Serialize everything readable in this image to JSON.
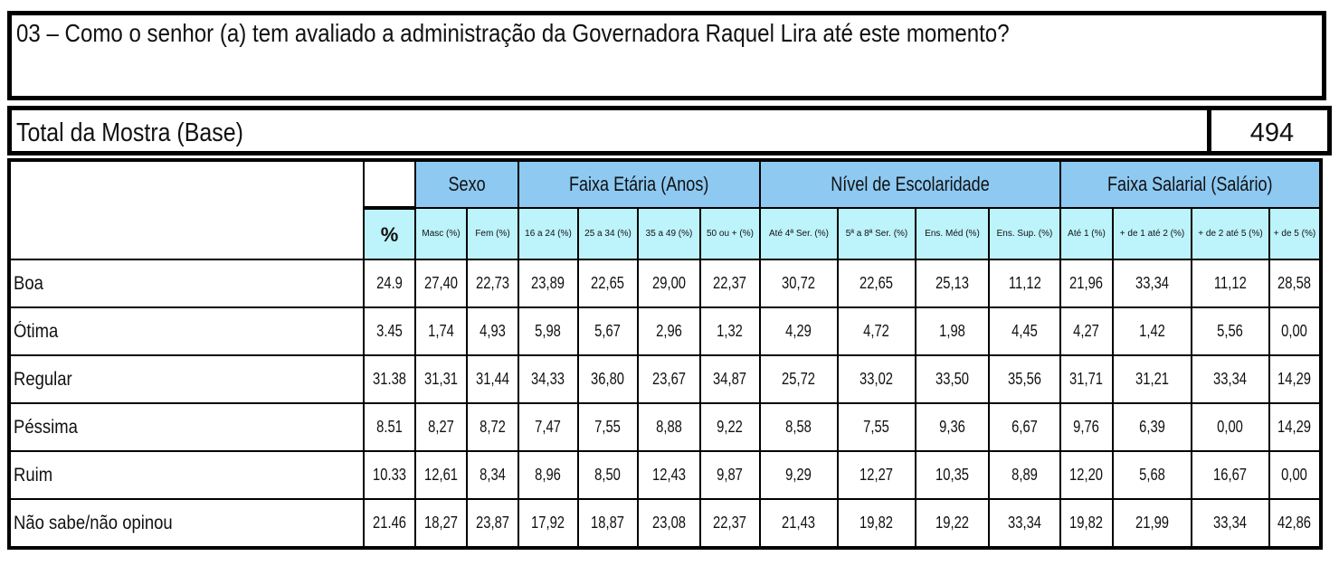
{
  "question": "03 – Como o senhor (a) tem avaliado a administração da Governadora Raquel Lira até este momento?",
  "base": {
    "label": "Total da Mostra (Base)",
    "value": "494"
  },
  "groups": [
    "Sexo",
    "Faixa Etária (Anos)",
    "Nível de Escolaridade",
    "Faixa Salarial (Salário)"
  ],
  "pct_header": "%",
  "columns": [
    "Masc (%)",
    "Fem (%)",
    "16 a 24 (%)",
    "25 a 34 (%)",
    "35 a 49 (%)",
    "50 ou + (%)",
    "Até 4ª Ser. (%)",
    "5ª a 8ª Ser. (%)",
    "Ens. Méd (%)",
    "Ens. Sup. (%)",
    "Até 1 (%)",
    "+ de 1 até 2 (%)",
    "+ de 2 até 5 (%)",
    "+ de 5 (%)"
  ],
  "rows": [
    {
      "label": "Boa",
      "pct": "24.9",
      "values": [
        "27,40",
        "22,73",
        "23,89",
        "22,65",
        "29,00",
        "22,37",
        "30,72",
        "22,65",
        "25,13",
        "11,12",
        "21,96",
        "33,34",
        "11,12",
        "28,58"
      ]
    },
    {
      "label": "Ótima",
      "pct": "3.45",
      "values": [
        "1,74",
        "4,93",
        "5,98",
        "5,67",
        "2,96",
        "1,32",
        "4,29",
        "4,72",
        "1,98",
        "4,45",
        "4,27",
        "1,42",
        "5,56",
        "0,00"
      ]
    },
    {
      "label": "Regular",
      "pct": "31.38",
      "values": [
        "31,31",
        "31,44",
        "34,33",
        "36,80",
        "23,67",
        "34,87",
        "25,72",
        "33,02",
        "33,50",
        "35,56",
        "31,71",
        "31,21",
        "33,34",
        "14,29"
      ]
    },
    {
      "label": "Péssima",
      "pct": "8.51",
      "values": [
        "8,27",
        "8,72",
        "7,47",
        "7,55",
        "8,88",
        "9,22",
        "8,58",
        "7,55",
        "9,36",
        "6,67",
        "9,76",
        "6,39",
        "0,00",
        "14,29"
      ]
    },
    {
      "label": "Ruim",
      "pct": "10.33",
      "values": [
        "12,61",
        "8,34",
        "8,96",
        "8,50",
        "12,43",
        "9,87",
        "9,29",
        "12,27",
        "10,35",
        "8,89",
        "12,20",
        "5,68",
        "16,67",
        "0,00"
      ]
    },
    {
      "label": "Não sabe/não opinou",
      "pct": "21.46",
      "values": [
        "18,27",
        "23,87",
        "17,92",
        "18,87",
        "23,08",
        "22,37",
        "21,43",
        "19,82",
        "19,22",
        "33,34",
        "19,82",
        "21,99",
        "33,34",
        "42,86"
      ]
    }
  ],
  "colors": {
    "group_header": "#8ec9f2",
    "sub_header": "#bdf3fb",
    "border": "#000000"
  }
}
